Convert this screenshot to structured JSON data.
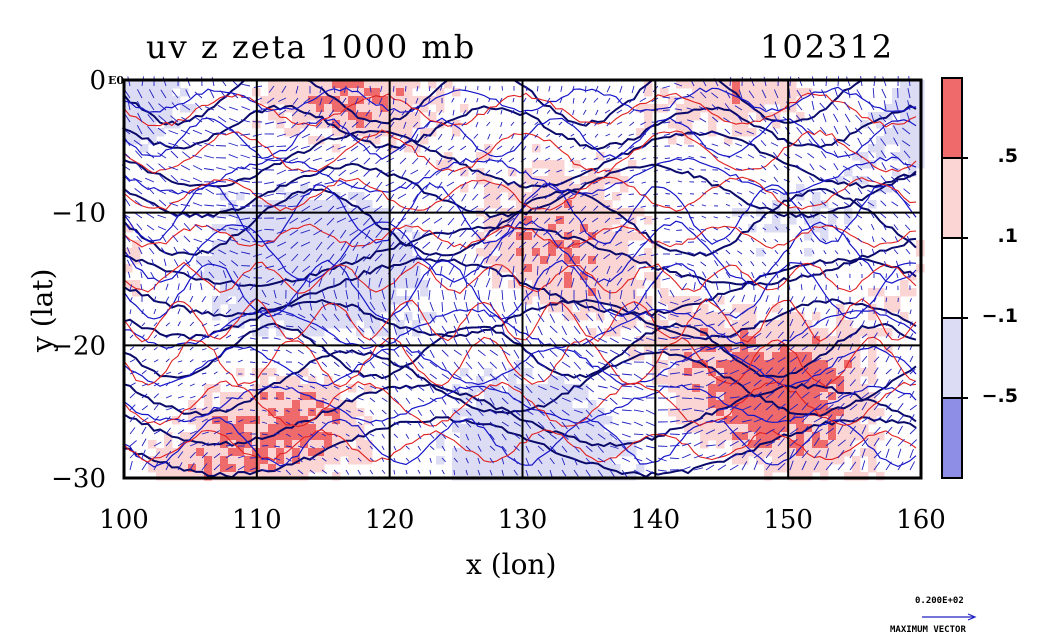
{
  "chart_data": {
    "type": "heatmap",
    "title": "uv z zeta 1000 mb",
    "title_right": "102312",
    "xlabel": "x (lon)",
    "ylabel": "y (lat)",
    "xlim": [
      100,
      160
    ],
    "ylim": [
      -30,
      0
    ],
    "x_ticks": [
      "100",
      "110",
      "120",
      "130",
      "140",
      "150",
      "160"
    ],
    "y_ticks": [
      "0",
      "−10",
      "−20",
      "−30"
    ],
    "y_top_suffix": "E0",
    "grid": true,
    "colorbar": {
      "position": "right",
      "labels": [
        ".5",
        ".1",
        "−.1",
        "−.5"
      ],
      "colors": [
        "#ef6b6b",
        "#fbd4d4",
        "#ffffff",
        "#dcdcf5",
        "#8e8ee6"
      ]
    },
    "vector_reference": {
      "magnitude_label": "0.200E+02",
      "caption": "MAXIMUM VECTOR"
    },
    "colors": {
      "positive_contour": "#e02020",
      "negative_contour": "#1515c8",
      "height_contour": "#0a0a6a",
      "vectors": "#2020c0"
    }
  }
}
